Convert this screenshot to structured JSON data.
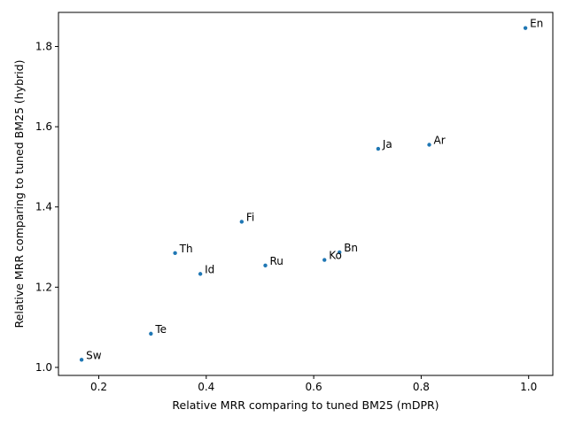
{
  "chart_data": {
    "type": "scatter",
    "xlabel": "Relative MRR comparing to tuned BM25 (mDPR)",
    "ylabel": "Relative MRR comparing to tuned BM25 (hybrid)",
    "xlim": [
      0.125,
      1.045
    ],
    "ylim": [
      0.98,
      1.885
    ],
    "xticks": [
      0.2,
      0.4,
      0.6,
      0.8,
      1.0
    ],
    "yticks": [
      1.0,
      1.2,
      1.4,
      1.6,
      1.8
    ],
    "grid": false,
    "marker_color": "#1f77b4",
    "points": [
      {
        "label": "En",
        "x": 0.994,
        "y": 1.846
      },
      {
        "label": "Ar",
        "x": 0.815,
        "y": 1.555
      },
      {
        "label": "Ja",
        "x": 0.72,
        "y": 1.545
      },
      {
        "label": "Fi",
        "x": 0.466,
        "y": 1.363
      },
      {
        "label": "Th",
        "x": 0.342,
        "y": 1.285
      },
      {
        "label": "Bn",
        "x": 0.648,
        "y": 1.287
      },
      {
        "label": "Ko",
        "x": 0.62,
        "y": 1.268
      },
      {
        "label": "Ru",
        "x": 0.51,
        "y": 1.254
      },
      {
        "label": "Id",
        "x": 0.389,
        "y": 1.233
      },
      {
        "label": "Te",
        "x": 0.297,
        "y": 1.084
      },
      {
        "label": "Sw",
        "x": 0.168,
        "y": 1.019
      }
    ]
  }
}
